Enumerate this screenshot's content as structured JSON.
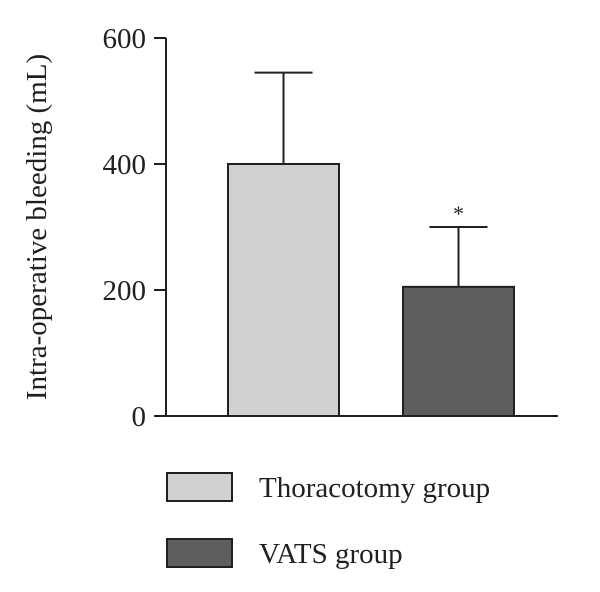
{
  "chart_data": {
    "type": "bar",
    "title": "",
    "xlabel": "",
    "ylabel": "Intra-operative bleeding (mL)",
    "ylim": [
      0,
      600
    ],
    "yticks": [
      0,
      200,
      400,
      600
    ],
    "grid": false,
    "legend_position": "bottom",
    "series": [
      {
        "name": "Thoracotomy group",
        "value": 400,
        "error_upper": 545,
        "color": "#d1d1d1",
        "annotation": ""
      },
      {
        "name": "VATS group",
        "value": 205,
        "error_upper": 300,
        "color": "#5e5e5e",
        "annotation": "*"
      }
    ]
  }
}
